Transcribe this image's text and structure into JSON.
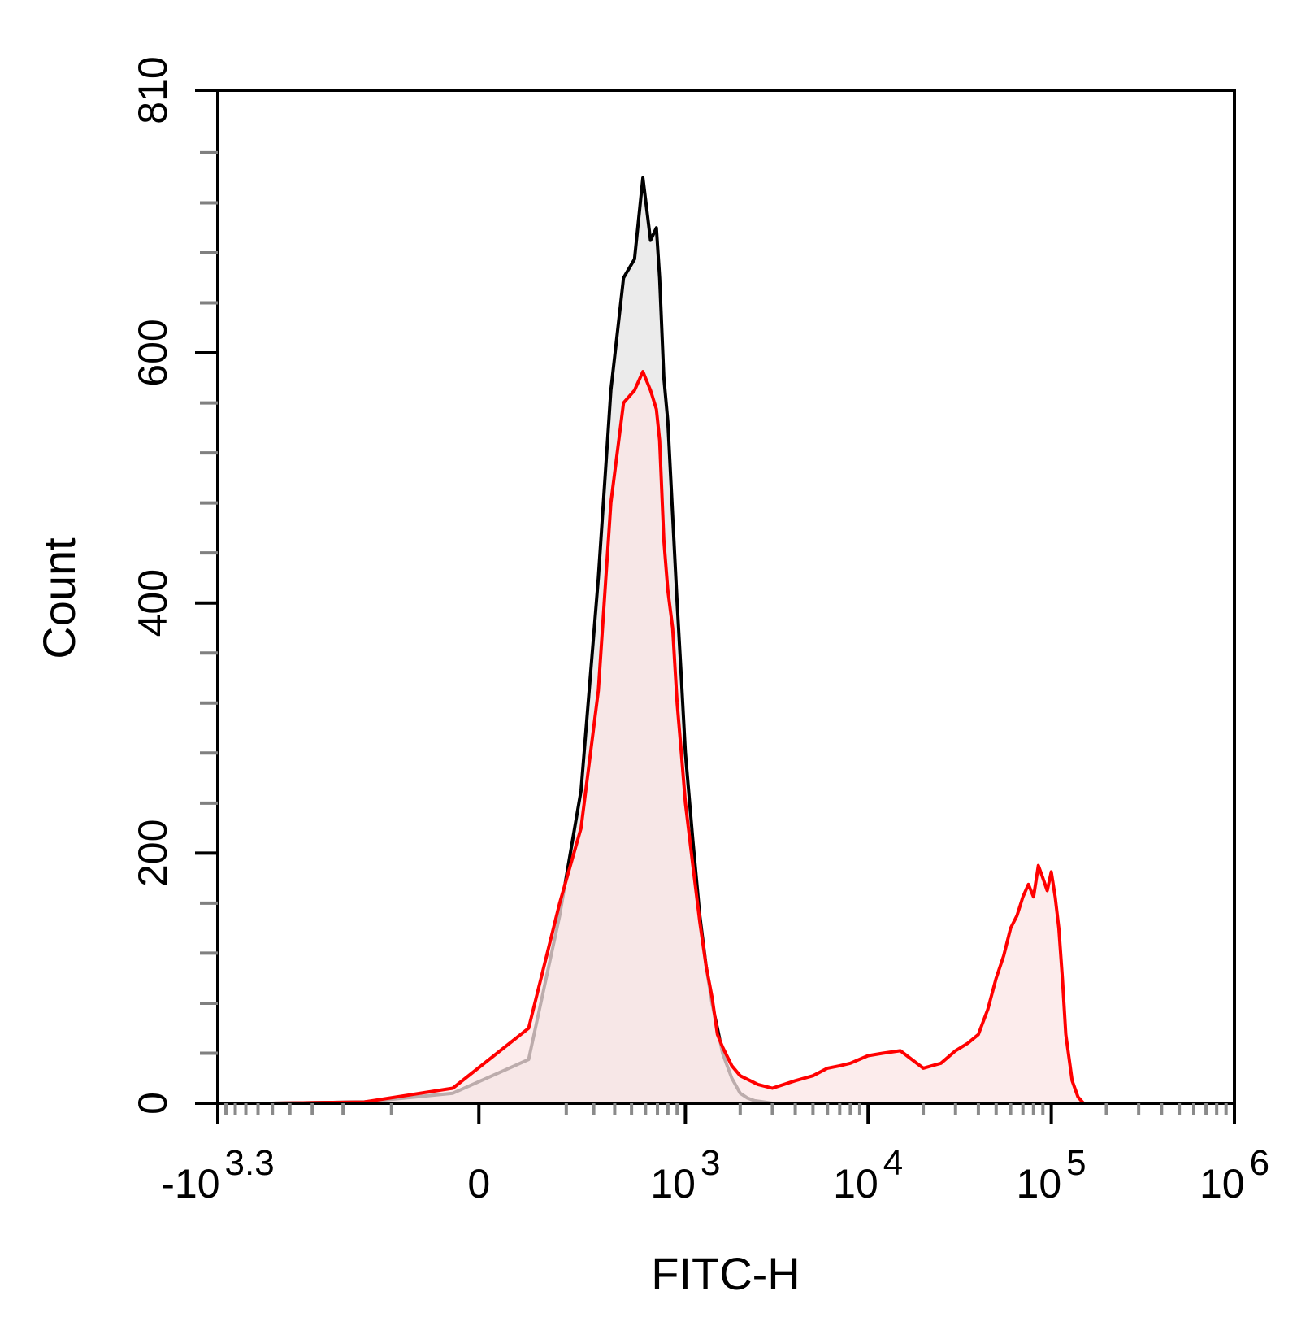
{
  "chart_data": {
    "type": "area",
    "title": "",
    "xlabel": "FITC-H",
    "ylabel": "Count",
    "xscale": "biexponential",
    "ylim": [
      0,
      810
    ],
    "xlim": [
      -1995,
      1000000
    ],
    "grid": false,
    "legend": "none",
    "y_ticks": [
      {
        "value": 0,
        "label": "0"
      },
      {
        "value": 200,
        "label": "200"
      },
      {
        "value": 400,
        "label": "400"
      },
      {
        "value": 600,
        "label": "600"
      },
      {
        "value": 810,
        "label": "810"
      }
    ],
    "x_ticks": [
      {
        "value": -1995,
        "base": "-10",
        "exp": "3.3"
      },
      {
        "value": 0,
        "base": "0",
        "exp": ""
      },
      {
        "value": 1000,
        "base": "10",
        "exp": "3"
      },
      {
        "value": 10000,
        "base": "10",
        "exp": "4"
      },
      {
        "value": 100000,
        "base": "10",
        "exp": "5"
      },
      {
        "value": 1000000,
        "base": "10",
        "exp": "6"
      }
    ],
    "series": [
      {
        "color": "#000000",
        "fill": "#ebebeb",
        "x": [
          -1000,
          -300,
          -50,
          100,
          180,
          250,
          320,
          380,
          450,
          520,
          580,
          640,
          690,
          720,
          760,
          800,
          850,
          900,
          950,
          1000,
          1100,
          1200,
          1300,
          1400,
          1500,
          1600,
          1800,
          2000,
          2200,
          2400,
          2700,
          3000,
          3500
        ],
        "values": [
          0,
          1,
          8,
          35,
          150,
          250,
          420,
          570,
          660,
          675,
          740,
          690,
          700,
          660,
          580,
          545,
          470,
          400,
          340,
          280,
          210,
          150,
          110,
          80,
          60,
          40,
          20,
          8,
          4,
          2,
          1,
          0,
          0
        ]
      },
      {
        "color": "#ff0000",
        "fill": "#fbe6e6",
        "x": [
          -1000,
          -300,
          -50,
          100,
          180,
          250,
          320,
          380,
          450,
          520,
          580,
          640,
          690,
          720,
          760,
          800,
          850,
          900,
          950,
          1000,
          1100,
          1200,
          1300,
          1400,
          1500,
          1600,
          1800,
          2000,
          2500,
          3000,
          4000,
          5000,
          6000,
          7000,
          8000,
          10000,
          12000,
          15000,
          20000,
          25000,
          30000,
          35000,
          40000,
          45000,
          50000,
          55000,
          60000,
          65000,
          70000,
          75000,
          80000,
          85000,
          90000,
          95000,
          100000,
          105000,
          110000,
          115000,
          120000,
          130000,
          140000,
          150000,
          160000,
          170000,
          180000
        ],
        "values": [
          0,
          1,
          12,
          60,
          160,
          220,
          330,
          480,
          560,
          570,
          585,
          570,
          555,
          530,
          450,
          410,
          380,
          320,
          280,
          240,
          190,
          145,
          110,
          85,
          55,
          45,
          30,
          22,
          15,
          12,
          18,
          22,
          28,
          30,
          32,
          38,
          40,
          42,
          28,
          32,
          42,
          48,
          55,
          75,
          100,
          118,
          140,
          150,
          165,
          175,
          165,
          190,
          180,
          170,
          185,
          165,
          140,
          100,
          55,
          18,
          5,
          0,
          0,
          0,
          0
        ]
      }
    ]
  }
}
